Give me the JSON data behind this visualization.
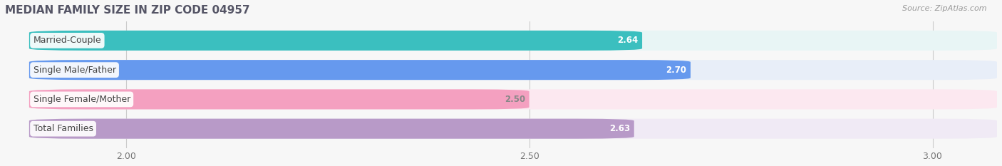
{
  "title": "MEDIAN FAMILY SIZE IN ZIP CODE 04957",
  "source": "Source: ZipAtlas.com",
  "categories": [
    "Married-Couple",
    "Single Male/Father",
    "Single Female/Mother",
    "Total Families"
  ],
  "values": [
    2.64,
    2.7,
    2.5,
    2.63
  ],
  "bar_colors": [
    "#3bbfbf",
    "#6699ee",
    "#f4a0c0",
    "#b89ac8"
  ],
  "bar_bg_colors": [
    "#e8f5f5",
    "#e8eef8",
    "#fce8f0",
    "#f0eaf5"
  ],
  "value_label_colors": [
    "white",
    "white",
    "#888888",
    "white"
  ],
  "xlim_min": 1.85,
  "xlim_max": 3.08,
  "xstart": 1.88,
  "xticks": [
    2.0,
    2.5,
    3.0
  ],
  "xtick_labels": [
    "2.00",
    "2.50",
    "3.00"
  ],
  "figsize": [
    14.06,
    2.33
  ],
  "dpi": 100,
  "background_color": "#f7f7f7",
  "bar_height": 0.68,
  "bar_label_fontsize": 8.5,
  "category_fontsize": 9,
  "title_fontsize": 11,
  "source_fontsize": 8
}
